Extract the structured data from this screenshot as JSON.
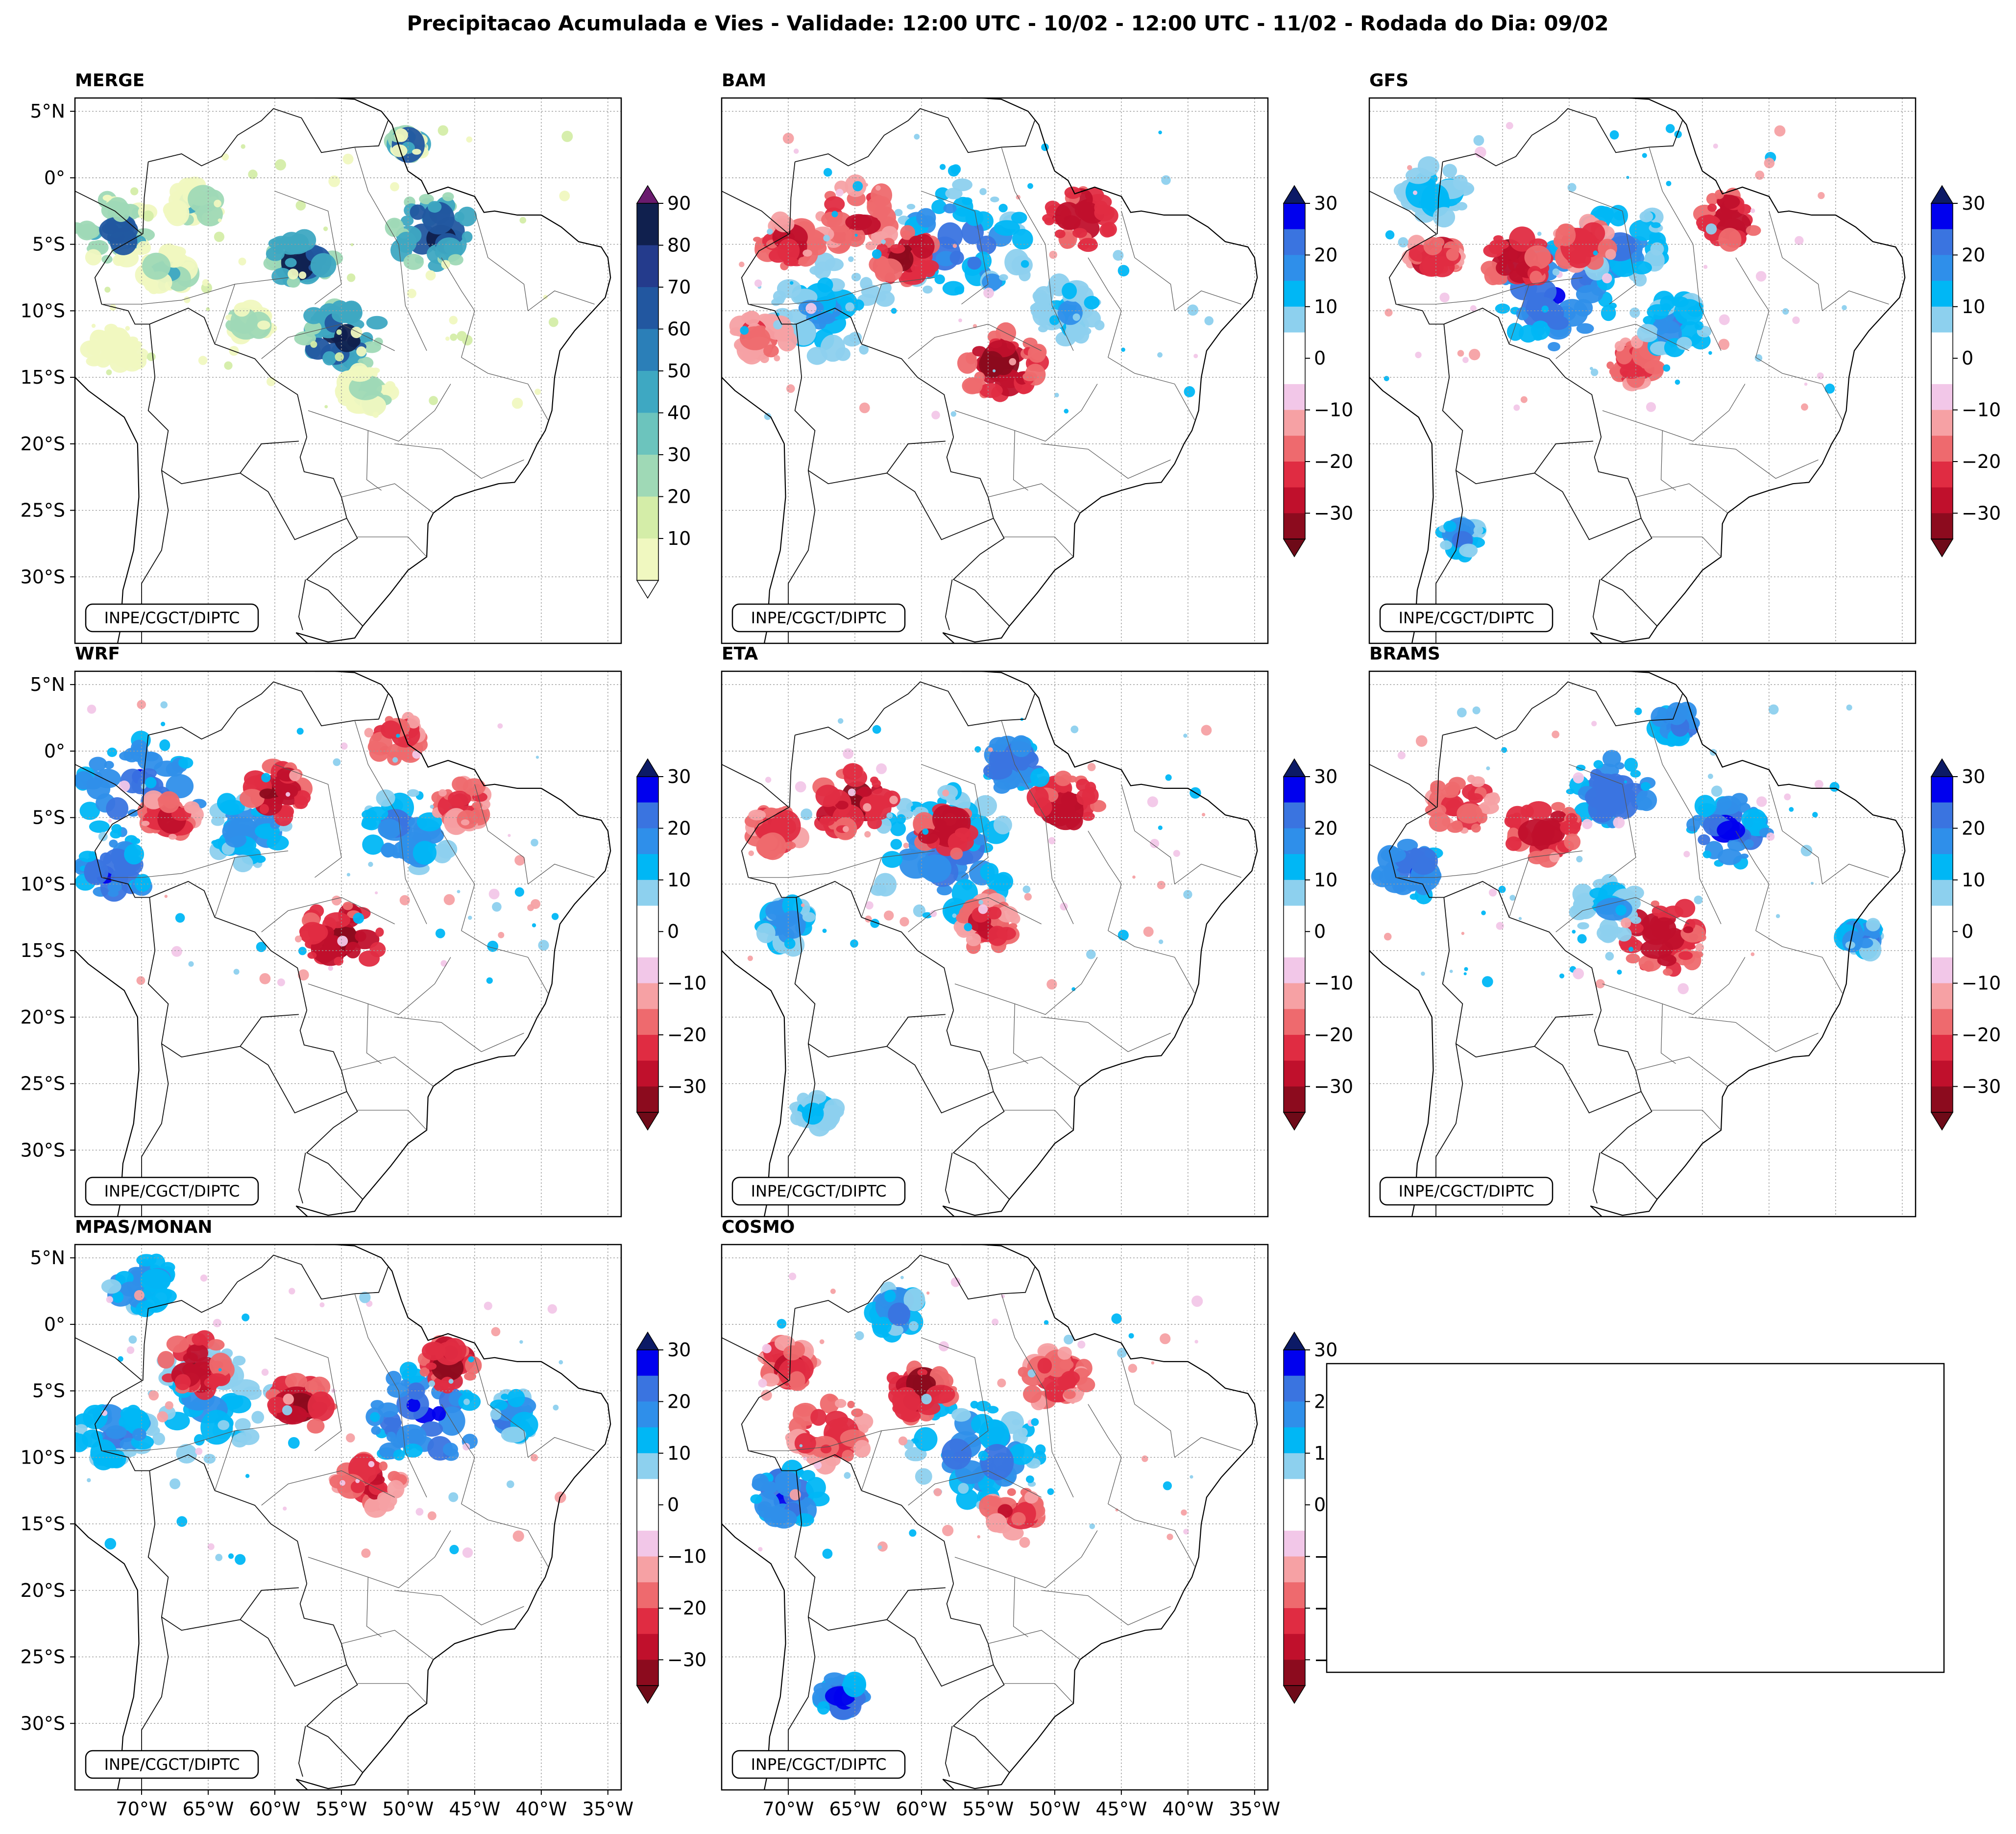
{
  "title": "Precipitacao Acumulada e Vies - Validade: 12:00 UTC - 10/02 - 12:00 UTC - 11/02 - Rodada do Dia: 09/02",
  "credit": "INPE/CGCT/DIPTC",
  "lat_labels": [
    "5°N",
    "0°",
    "5°S",
    "10°S",
    "15°S",
    "20°S",
    "25°S",
    "30°S"
  ],
  "lon_labels": [
    "70°W",
    "65°W",
    "60°W",
    "55°W",
    "50°W",
    "45°W",
    "40°W",
    "35°W"
  ],
  "colorbars": {
    "merge": {
      "ticks": [
        "10",
        "20",
        "30",
        "40",
        "50",
        "60",
        "70",
        "80",
        "90"
      ],
      "colors": [
        "#f0f8c0",
        "#d4eda8",
        "#9fd9b6",
        "#6cc4bd",
        "#3ea8c2",
        "#2b7fb8",
        "#2257a0",
        "#243b8c",
        "#10204e"
      ],
      "extend_low": "#ffffff",
      "extend_high": "#6a1b6e"
    },
    "bias": {
      "ticks": [
        "30",
        "20",
        "10",
        "0",
        "−10",
        "−20",
        "−30"
      ],
      "colors": [
        "#0000ee",
        "#3a74e0",
        "#2f8fea",
        "#00b7f5",
        "#8dd0ee",
        "#ffffff",
        "#ffffff",
        "#f2c7e8",
        "#f6a1a4",
        "#ee6a6e",
        "#e02c42",
        "#c0102c",
        "#8c0b1e"
      ],
      "extend_high": "#0c1a66",
      "extend_low": "#6e0a18"
    }
  },
  "panels": [
    {
      "id": "merge",
      "label": "MERGE",
      "scale": "merge",
      "show_lat": true,
      "show_lon": false
    },
    {
      "id": "bam",
      "label": "BAM",
      "scale": "bias",
      "show_lat": false,
      "show_lon": false
    },
    {
      "id": "gfs",
      "label": "GFS",
      "scale": "bias",
      "show_lat": false,
      "show_lon": false
    },
    {
      "id": "wrf",
      "label": "WRF",
      "scale": "bias",
      "show_lat": true,
      "show_lon": false
    },
    {
      "id": "eta",
      "label": "ETA",
      "scale": "bias",
      "show_lat": false,
      "show_lon": false
    },
    {
      "id": "brams",
      "label": "BRAMS",
      "scale": "bias",
      "show_lat": false,
      "show_lon": false
    },
    {
      "id": "mpas",
      "label": "MPAS/MONAN",
      "scale": "bias",
      "show_lat": true,
      "show_lon": true
    },
    {
      "id": "cosmo",
      "label": "COSMO",
      "scale": "bias",
      "show_lat": false,
      "show_lon": true
    }
  ]
}
